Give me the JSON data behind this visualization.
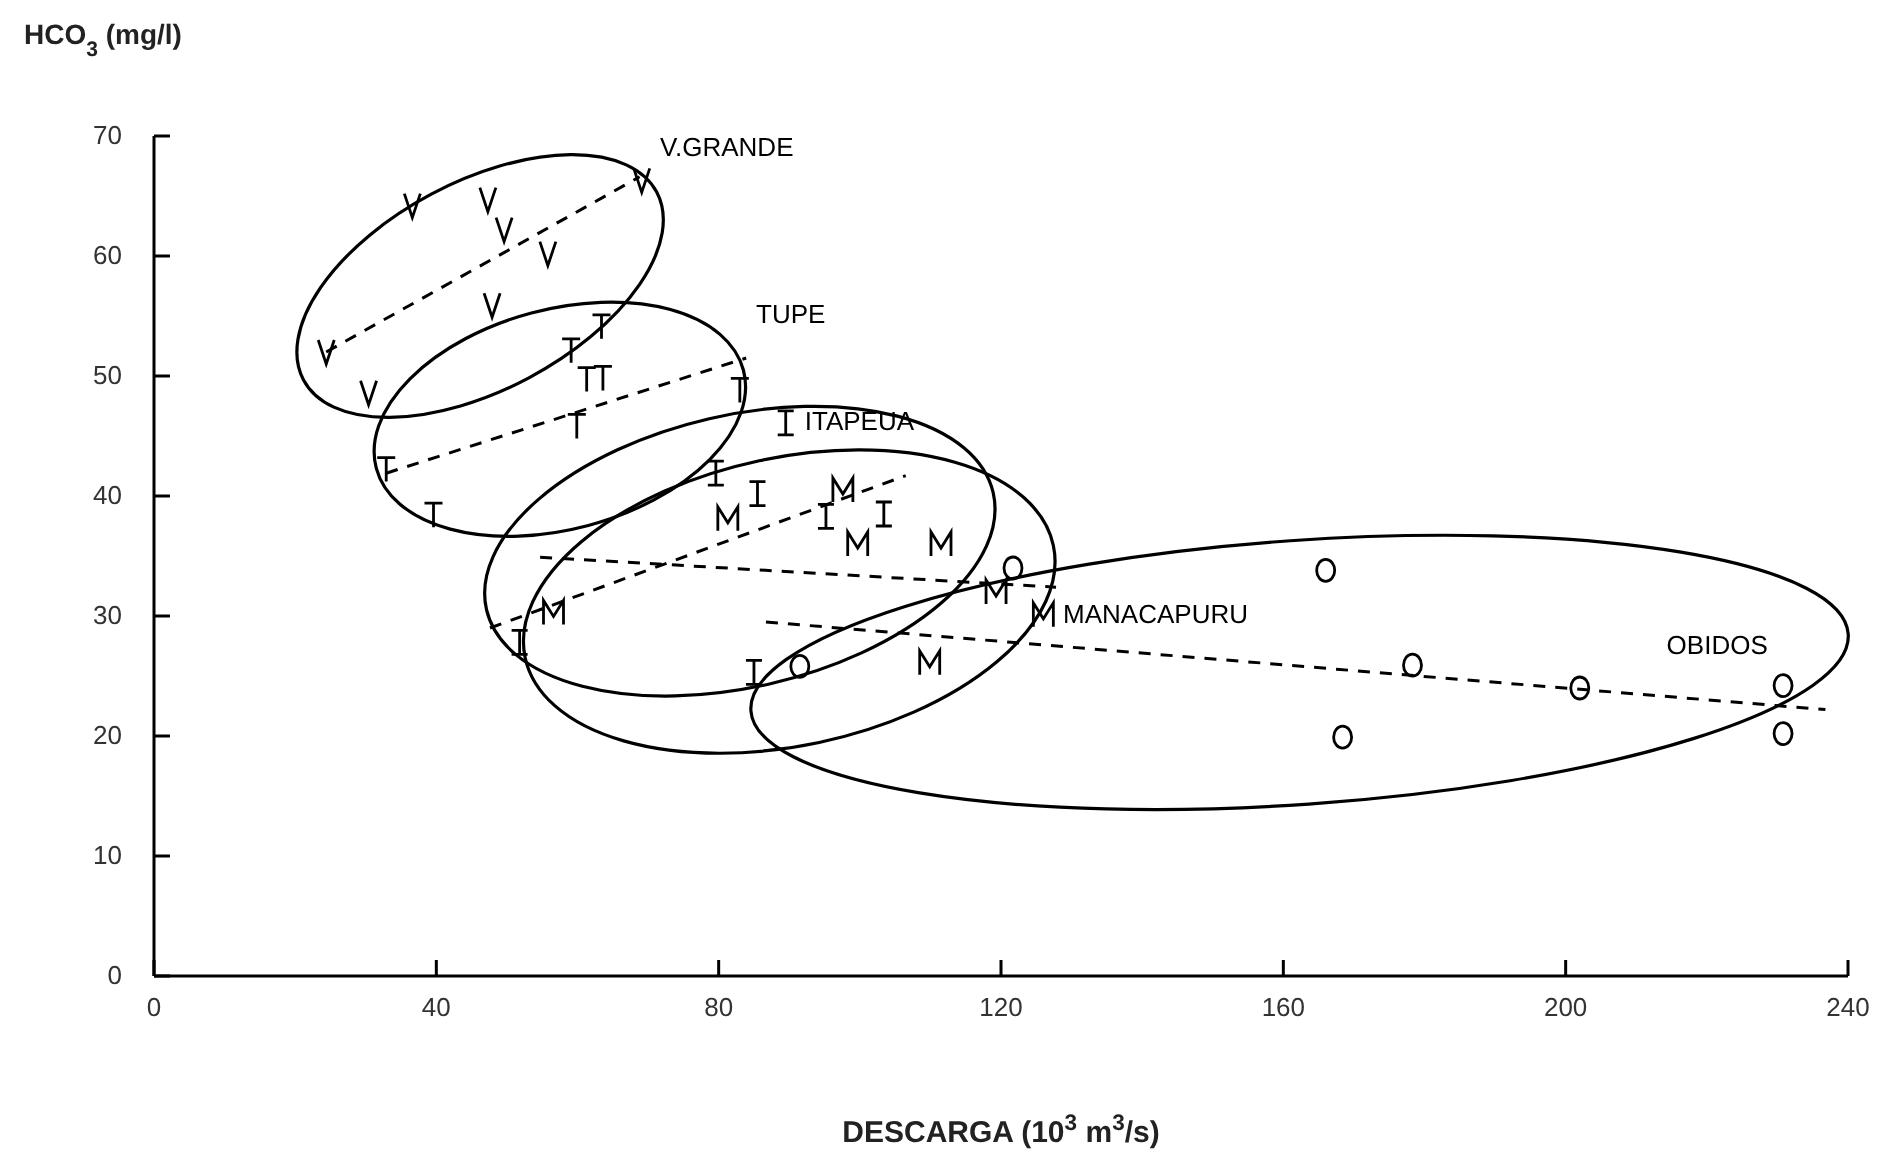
{
  "chart_data": {
    "type": "scatter",
    "xlabel": "DESCARGA (10$^{3}$ m$^{3}$/s)",
    "ylabel": "HCO$_{3}$ (mg/l)",
    "xlim": [
      0,
      240
    ],
    "xticks": [
      0,
      40,
      80,
      120,
      160,
      200,
      240
    ],
    "ylim": [
      0,
      70
    ],
    "yticks": [
      0,
      10,
      20,
      30,
      40,
      50,
      60,
      70
    ],
    "grid": false,
    "legend": false,
    "series": [
      {
        "name": "V.GRANDE",
        "color": "#000000",
        "x": [
          24.4,
          30.4,
          36.6,
          47.3,
          49.6,
          55.8,
          47.9,
          69.1
        ],
        "values": [
          52.0,
          48.6,
          64.2,
          64.7,
          62.2,
          60.2,
          55.9,
          66.3
        ]
      },
      {
        "name": "TUPE",
        "color": "#000000",
        "x": [
          63.4,
          59.1,
          61.3,
          63.6,
          59.9,
          83,
          32.9,
          39.6
        ],
        "values": [
          54.1,
          52.1,
          49.7,
          49.8,
          45.8,
          48.8,
          42.2,
          38.4
        ]
      },
      {
        "name": "ITAPEUA",
        "color": "#000000",
        "x": [
          89.5,
          79.6,
          85.5,
          95.2,
          103.4,
          51.8,
          85
        ],
        "values": [
          46.1,
          41.9,
          40.2,
          38.3,
          38.5,
          27.8,
          25.3
        ]
      },
      {
        "name": "MANACAPURU",
        "color": "#000000",
        "x": [
          81.3,
          97.6,
          99.7,
          111.5,
          119.3,
          126,
          56.6,
          109.9
        ],
        "values": [
          38.1,
          40.5,
          36.0,
          36.0,
          32.0,
          30.1,
          30.3,
          26.1
        ]
      },
      {
        "name": "OBIDOS",
        "color": "#000000",
        "x": [
          91.5,
          121.7,
          166,
          178.3,
          202,
          230.8,
          230.8,
          168.4
        ],
        "values": [
          25.8,
          34.0,
          33.8,
          25.9,
          24.0,
          24.2,
          20.2,
          19.9
        ]
      },
      {
        "type": "line",
        "color": "#000000",
        "line_style": "dashed",
        "x": [
          24.4,
          68.8
        ],
        "values": [
          52.0,
          66.6
        ]
      },
      {
        "type": "line",
        "color": "#000000",
        "line_style": "dashed",
        "x": [
          32.9,
          83.9
        ],
        "values": [
          41.9,
          51.5
        ]
      },
      {
        "type": "line",
        "color": "#000000",
        "line_style": "dashed",
        "x": [
          47.6,
          106.5
        ],
        "values": [
          29.0,
          41.7
        ]
      },
      {
        "type": "line",
        "color": "#000000",
        "line_style": "dashed",
        "x": [
          54.7,
          127.8
        ],
        "values": [
          34.9,
          32.4
        ]
      },
      {
        "type": "line",
        "color": "#000000",
        "line_style": "dashed",
        "x": [
          86.7,
          236.8
        ],
        "values": [
          29.5,
          22.2
        ]
      }
    ]
  }
}
